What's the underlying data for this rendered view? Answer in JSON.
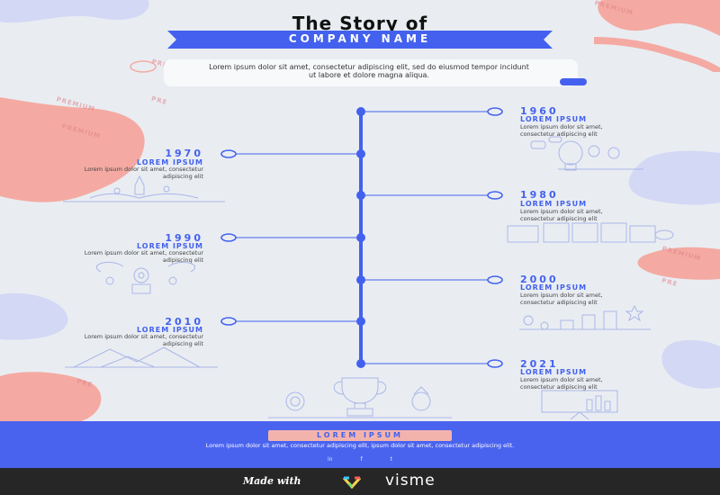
{
  "header": {
    "title": "The Story of",
    "subtitle": "COMPANY NAME",
    "intro": "Lorem ipsum dolor sit amet, consectetur adipiscing elit, sed do eiusmod tempor incidunt ut labore et dolore magna aliqua."
  },
  "timeline": [
    {
      "year": "1960",
      "heading": "LOREM IPSUM",
      "text": "Lorem ipsum dolor sit amet, consectetur adipiscing elit"
    },
    {
      "year": "1970",
      "heading": "LOREM IPSUM",
      "text": "Lorem ipsum dolor sit amet, consectetur adipiscing elit"
    },
    {
      "year": "1980",
      "heading": "LOREM IPSUM",
      "text": "Lorem ipsum dolor sit amet, consectetur adipiscing elit"
    },
    {
      "year": "1990",
      "heading": "LOREM IPSUM",
      "text": "Lorem ipsum dolor sit amet, consectetur adipiscing elit"
    },
    {
      "year": "2000",
      "heading": "LOREM IPSUM",
      "text": "Lorem ipsum dolor sit amet, consectetur adipiscing elit"
    },
    {
      "year": "2010",
      "heading": "LOREM IPSUM",
      "text": "Lorem ipsum dolor sit amet, consectetur adipiscing elit"
    },
    {
      "year": "2021",
      "heading": "LOREM IPSUM",
      "text": "Lorem ipsum dolor sit amet, consectetur adipiscing elit"
    }
  ],
  "footer": {
    "heading": "LOREM IPSUM",
    "text": "Lorem ipsum dolor sit amet, consectetur adipiscing elit, ipsum dolor sit amet, consectetur adipiscing elit.",
    "social_icons": [
      "linkedin-icon",
      "facebook-icon",
      "twitter-icon"
    ],
    "social_glyphs": [
      "in",
      "f",
      "t"
    ]
  },
  "branding": {
    "made_with": "Made with",
    "brand": "visme"
  },
  "watermarks": [
    "PREMIUM",
    "PRE",
    "PREMIUM",
    "PREMIUM",
    "PREMIUM",
    "PREMIUM",
    "PRE",
    "PRE"
  ],
  "colors": {
    "accent": "#4361ee",
    "blob_pink": "#f4aaa2",
    "blob_lavender": "#d3d8f5",
    "background": "#e9edf2",
    "footer": "#4a63ef",
    "bottom_bar": "#262626"
  }
}
